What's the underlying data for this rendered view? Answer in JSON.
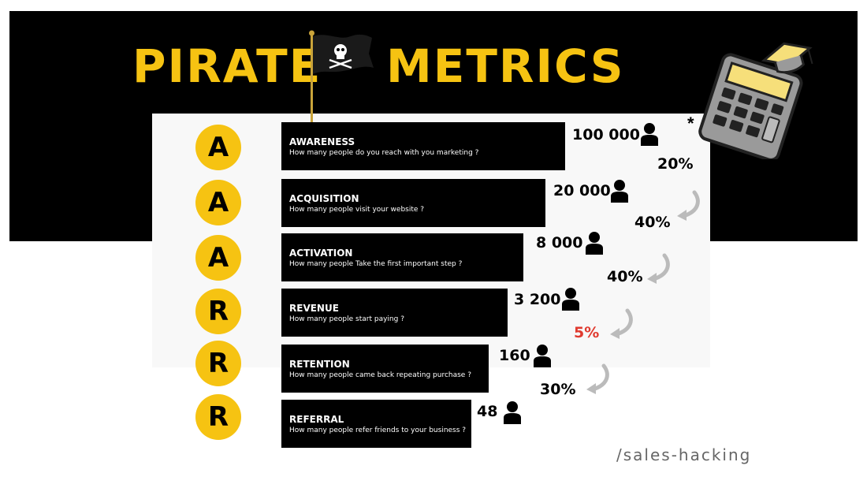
{
  "title": {
    "left": "PIRATE",
    "right": "METRICS"
  },
  "icons": {
    "flag": "pirate-flag-icon",
    "calculator": "calculator-icon",
    "person": "person-icon",
    "arrow": "curved-arrow-icon"
  },
  "colors": {
    "yellow": "#f6c312",
    "black": "#000000",
    "red": "#e03a2f",
    "arrow_gray": "#bbbbbb"
  },
  "asterisk": "*",
  "stages": [
    {
      "letter": "A",
      "title": "AWARENESS",
      "question": "How many people do you reach with you marketing ?",
      "count": "100 000"
    },
    {
      "letter": "A",
      "title": "ACQUISITION",
      "question": "How many people visit your website ?",
      "count": "20 000"
    },
    {
      "letter": "A",
      "title": "ACTIVATION",
      "question": "How many people Take the first important step ?",
      "count": "8 000"
    },
    {
      "letter": "R",
      "title": "REVENUE",
      "question": "How many people start paying ?",
      "count": "3 200"
    },
    {
      "letter": "R",
      "title": "RETENTION",
      "question": "How many people came back repeating purchase ?",
      "count": "160"
    },
    {
      "letter": "R",
      "title": "REFERRAL",
      "question": "How many people refer friends to your business ?",
      "count": "48"
    }
  ],
  "conversions": [
    {
      "label": "20%",
      "highlight": false
    },
    {
      "label": "40%",
      "highlight": false
    },
    {
      "label": "40%",
      "highlight": false
    },
    {
      "label": "5%",
      "highlight": true
    },
    {
      "label": "30%",
      "highlight": false
    }
  ],
  "brand": "/sales-hacking"
}
